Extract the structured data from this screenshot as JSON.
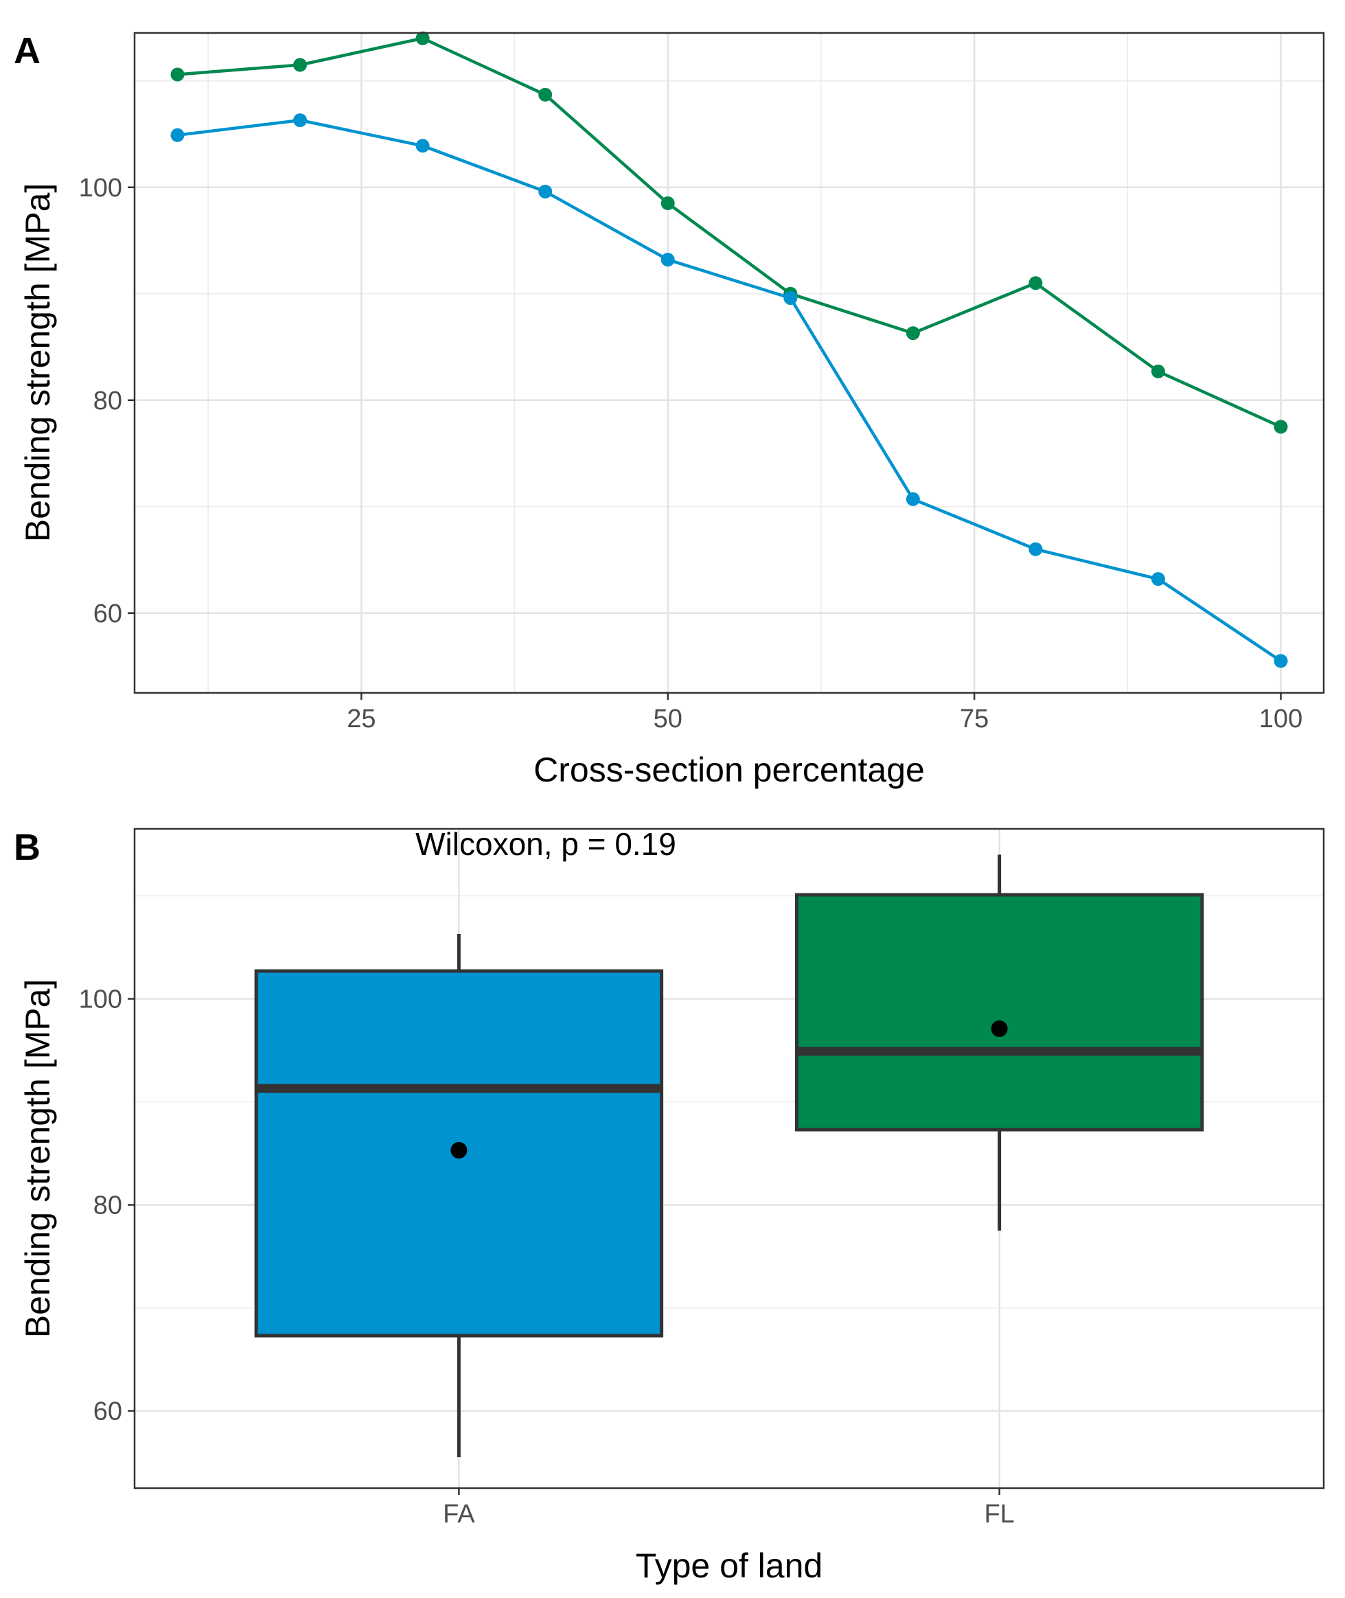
{
  "chart_data": [
    {
      "panel": "A",
      "type": "line",
      "xlabel": "Cross-section percentage",
      "ylabel": "Bending strength [MPa]",
      "xlim": [
        6.5,
        103.5
      ],
      "ylim": [
        52.5,
        114.5
      ],
      "x_ticks": [
        25,
        50,
        75,
        100
      ],
      "y_ticks": [
        60,
        80,
        100
      ],
      "grid": true,
      "legend": "none",
      "series": [
        {
          "color": "#00894f",
          "x": [
            10,
            20,
            30,
            40,
            50,
            60,
            70,
            80,
            90,
            100
          ],
          "y": [
            110.6,
            111.5,
            114.0,
            108.7,
            98.5,
            90.0,
            86.3,
            91.0,
            82.7,
            77.5
          ]
        },
        {
          "color": "#0093d0",
          "x": [
            10,
            20,
            30,
            40,
            50,
            60,
            70,
            80,
            90,
            100
          ],
          "y": [
            104.9,
            106.3,
            103.9,
            99.6,
            93.2,
            89.6,
            70.7,
            66.0,
            63.2,
            55.5
          ]
        }
      ]
    },
    {
      "panel": "B",
      "type": "boxplot",
      "xlabel": "Type of land",
      "ylabel": "Bending strength [MPa]",
      "annotation": "Wilcoxon, p = 0.19",
      "ylim": [
        52.5,
        116.5
      ],
      "y_ticks": [
        60,
        80,
        100
      ],
      "grid": true,
      "legend": "none",
      "categories": [
        "FA",
        "FL"
      ],
      "boxes": [
        {
          "category": "FA",
          "color": "#0093d0",
          "min": 55.5,
          "q1": 67.3,
          "median": 91.3,
          "q3": 102.7,
          "max": 106.3,
          "mean": 85.3
        },
        {
          "category": "FL",
          "color": "#00894f",
          "min": 77.5,
          "q1": 87.3,
          "median": 94.9,
          "q3": 110.1,
          "max": 114.0,
          "mean": 97.1
        }
      ]
    }
  ]
}
